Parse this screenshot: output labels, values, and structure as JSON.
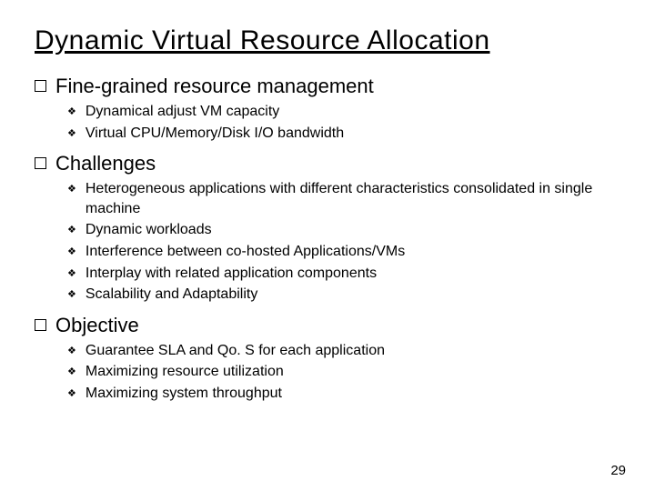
{
  "title": "Dynamic Virtual Resource Allocation",
  "sections": [
    {
      "heading": "Fine-grained resource management",
      "items": [
        "Dynamical adjust VM capacity",
        "Virtual CPU/Memory/Disk I/O bandwidth"
      ]
    },
    {
      "heading": "Challenges",
      "items": [
        "Heterogeneous applications with different characteristics consolidated in single machine",
        "Dynamic workloads",
        "Interference between co-hosted Applications/VMs",
        "Interplay with related application components",
        "Scalability and Adaptability"
      ]
    },
    {
      "heading": "Objective",
      "items": [
        "Guarantee SLA and Qo. S for each application",
        "Maximizing resource utilization",
        "Maximizing system throughput"
      ]
    }
  ],
  "page_number": "29",
  "style": {
    "background_color": "#ffffff",
    "text_color": "#000000",
    "title_fontsize": 30,
    "section_fontsize": 22,
    "item_fontsize": 16,
    "title_underline": true
  }
}
